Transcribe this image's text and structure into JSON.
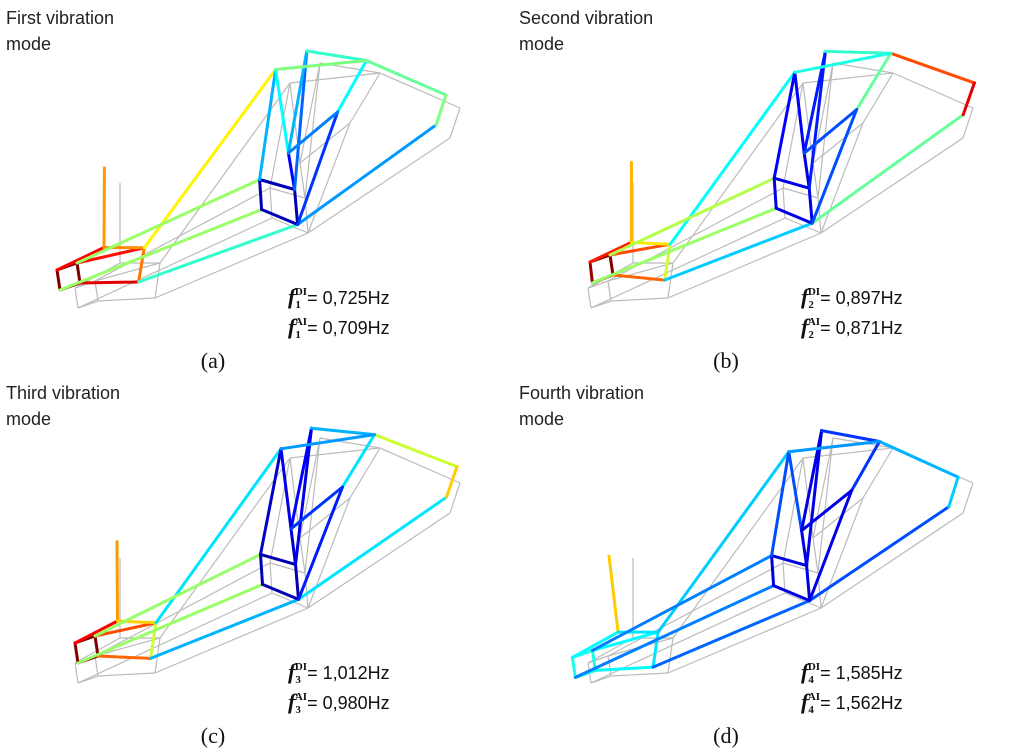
{
  "panels": [
    {
      "title": [
        "First vibration",
        "mode"
      ],
      "caption": "(a)",
      "freqs": [
        {
          "symbol": "f",
          "sub": "1",
          "sup": "DI",
          "value": "= 0,725Hz"
        },
        {
          "symbol": "f",
          "sub": "1",
          "sup": "AI",
          "value": "= 0,709Hz"
        }
      ]
    },
    {
      "title": [
        "Second vibration",
        "mode"
      ],
      "caption": "(b)",
      "freqs": [
        {
          "symbol": "f",
          "sub": "2",
          "sup": "DI",
          "value": "= 0,897Hz"
        },
        {
          "symbol": "f",
          "sub": "2",
          "sup": "AI",
          "value": "= 0,871Hz"
        }
      ]
    },
    {
      "title": [
        "Third vibration",
        "mode"
      ],
      "caption": "(c)",
      "freqs": [
        {
          "symbol": "f",
          "sub": "3",
          "sup": "DI",
          "value": "= 1,012Hz"
        },
        {
          "symbol": "f",
          "sub": "3",
          "sup": "AI",
          "value": "= 0,980Hz"
        }
      ]
    },
    {
      "title": [
        "Fourth vibration",
        "mode"
      ],
      "caption": "(d)",
      "freqs": [
        {
          "symbol": "f",
          "sub": "4",
          "sup": "DI",
          "value": "= 1,585Hz"
        },
        {
          "symbol": "f",
          "sub": "4",
          "sup": "AI",
          "value": "= 1,562Hz"
        }
      ]
    }
  ]
}
